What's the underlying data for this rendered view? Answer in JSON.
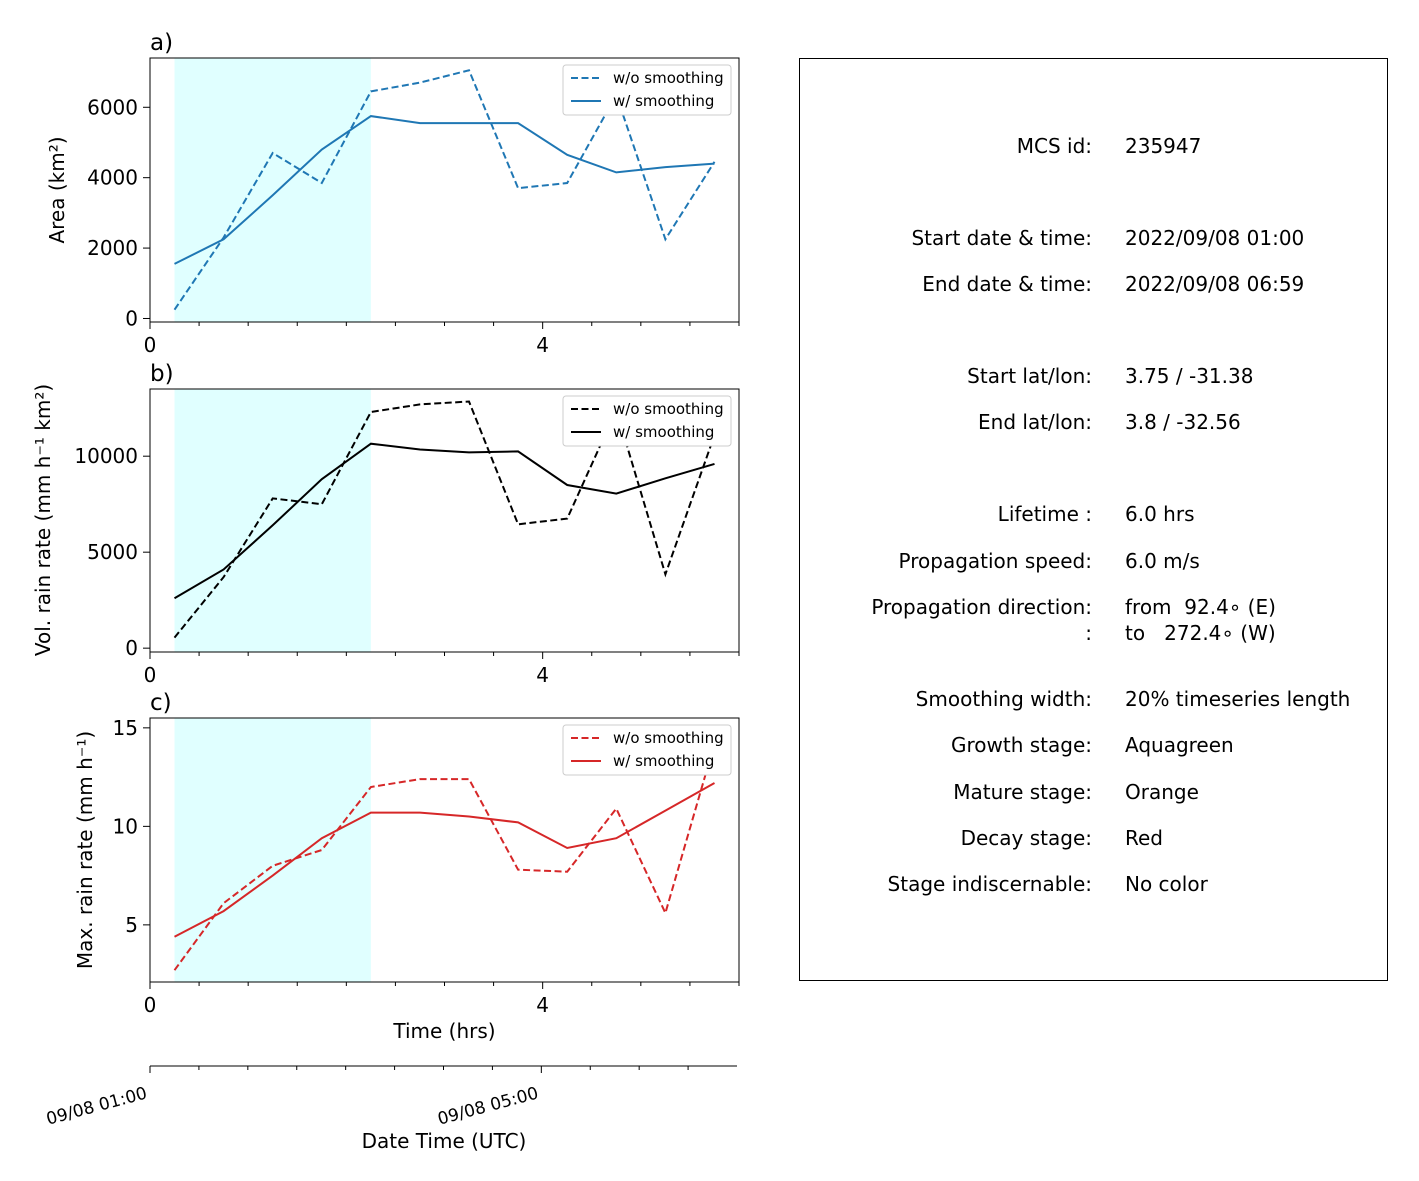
{
  "colors": {
    "growth_shade": "#e0ffff",
    "area": "#1f77b4",
    "volume": "#000000",
    "maxrate": "#d62728"
  },
  "chart_data": [
    {
      "type": "line",
      "panel": "a)",
      "ylabel": "Area  (km²)",
      "xlabel": "",
      "xlim": [
        0,
        6.0
      ],
      "ylim": [
        -100,
        7400
      ],
      "xticks": [
        0,
        4
      ],
      "yticks": [
        0,
        2000,
        4000,
        6000
      ],
      "shaded_range": [
        0.25,
        2.25
      ],
      "legend_position": "top-right",
      "x": [
        0.25,
        0.75,
        1.25,
        1.75,
        2.25,
        2.75,
        3.25,
        3.75,
        4.25,
        4.75,
        5.25,
        5.75
      ],
      "series": [
        {
          "name": "w/o smoothing",
          "style": "dashed",
          "values": [
            250,
            2300,
            4700,
            3850,
            6450,
            6700,
            7050,
            3700,
            3850,
            6350,
            2250,
            4450
          ]
        },
        {
          "name": "w/ smoothing",
          "style": "solid",
          "values": [
            1550,
            2250,
            3500,
            4800,
            5750,
            5550,
            5550,
            5550,
            4650,
            4150,
            4300,
            4400
          ]
        }
      ]
    },
    {
      "type": "line",
      "panel": "b)",
      "ylabel": "Vol. rain rate (mm h⁻¹ km²)",
      "xlabel": "",
      "xlim": [
        0,
        6.0
      ],
      "ylim": [
        -200,
        13500
      ],
      "xticks": [
        0,
        4
      ],
      "yticks": [
        0,
        5000,
        10000
      ],
      "shaded_range": [
        0.25,
        2.25
      ],
      "legend_position": "top-right",
      "x": [
        0.25,
        0.75,
        1.25,
        1.75,
        2.25,
        2.75,
        3.25,
        3.75,
        4.25,
        4.75,
        5.25,
        5.75
      ],
      "series": [
        {
          "name": "w/o smoothing",
          "style": "dashed",
          "values": [
            550,
            3700,
            7800,
            7500,
            12300,
            12700,
            12850,
            6450,
            6750,
            12400,
            3850,
            11100
          ]
        },
        {
          "name": "w/ smoothing",
          "style": "solid",
          "values": [
            2600,
            4100,
            6400,
            8800,
            10650,
            10350,
            10200,
            10250,
            8500,
            8050,
            8850,
            9600
          ]
        }
      ]
    },
    {
      "type": "line",
      "panel": "c)",
      "ylabel": "Max. rain rate  (mm h⁻¹)",
      "xlabel": "Time (hrs)",
      "xlim": [
        0,
        6.0
      ],
      "ylim": [
        2.1,
        15.5
      ],
      "xticks": [
        0,
        4
      ],
      "yticks": [
        5,
        10,
        15
      ],
      "shaded_range": [
        0.25,
        2.25
      ],
      "legend_position": "top-right",
      "x": [
        0.25,
        0.75,
        1.25,
        1.75,
        2.25,
        2.75,
        3.25,
        3.75,
        4.25,
        4.75,
        5.25,
        5.75
      ],
      "series": [
        {
          "name": "w/o smoothing",
          "style": "dashed",
          "values": [
            2.7,
            6.1,
            8.0,
            8.8,
            12.0,
            12.4,
            12.4,
            7.8,
            7.7,
            10.9,
            5.6,
            14.2
          ]
        },
        {
          "name": "w/ smoothing",
          "style": "solid",
          "values": [
            4.4,
            5.7,
            7.5,
            9.4,
            10.7,
            10.7,
            10.5,
            10.2,
            8.9,
            9.4,
            10.8,
            12.2
          ]
        }
      ]
    }
  ],
  "date_axis": {
    "xlabel": "Date Time (UTC)",
    "xlim": [
      0,
      6.0
    ],
    "ticks": [
      {
        "x": 0,
        "label": "09/08 01:00"
      },
      {
        "x": 4,
        "label": "09/08 05:00"
      }
    ]
  },
  "info": {
    "rows": [
      {
        "key": "MCS id:",
        "val": "235947"
      },
      {
        "key": "Start date & time:",
        "val": "2022/09/08 01:00"
      },
      {
        "key": "End date & time:",
        "val": "2022/09/08 06:59"
      },
      {
        "key": "Start lat/lon:",
        "val": "3.75 / -31.38"
      },
      {
        "key": "End lat/lon:",
        "val": "3.8 / -32.56"
      },
      {
        "key": "Lifetime :",
        "val": "6.0 hrs"
      },
      {
        "key": "Propagation speed:",
        "val": "6.0 m/s"
      },
      {
        "key": "Propagation direction:",
        "val": "from  92.4∘ (E)"
      },
      {
        "key": ":",
        "val": "to   272.4∘ (W)"
      },
      {
        "key": "Smoothing width:",
        "val": "20% timeseries length"
      },
      {
        "key": "Growth stage:",
        "val": "Aquagreen"
      },
      {
        "key": "Mature stage:",
        "val": "Orange"
      },
      {
        "key": "Decay stage:",
        "val": "Red"
      },
      {
        "key": "Stage indiscernable:",
        "val": "No color"
      }
    ]
  }
}
